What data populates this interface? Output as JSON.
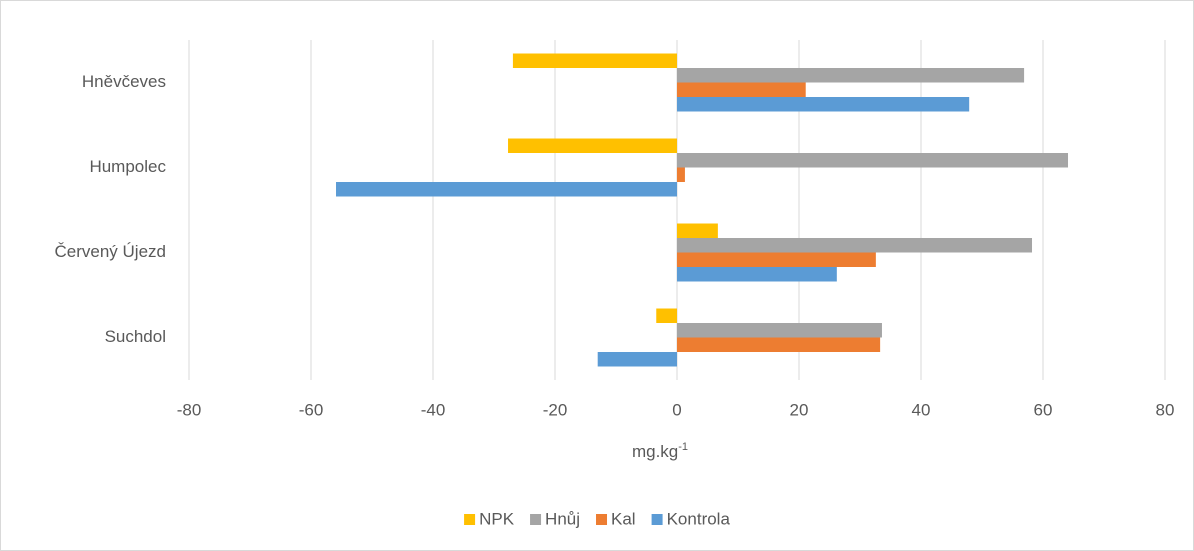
{
  "chart_data": {
    "type": "hbar",
    "categories": [
      "Suchdol",
      "Červený Újezd",
      "Humpolec",
      "Hněvčeves"
    ],
    "series": [
      {
        "name": "NPK",
        "color": "#ffc000",
        "values": [
          -3.4,
          6.7,
          -27.7,
          -26.9
        ]
      },
      {
        "name": "Hnůj",
        "color": "#a5a5a5",
        "values": [
          33.6,
          58.2,
          64.1,
          56.9
        ]
      },
      {
        "name": "Kal",
        "color": "#ed7d31",
        "values": [
          33.3,
          32.6,
          1.3,
          21.1
        ]
      },
      {
        "name": "Kontrola",
        "color": "#5b9bd5",
        "values": [
          -13,
          26.2,
          -55.9,
          47.9
        ]
      }
    ],
    "xlabel": "mg.kg",
    "xlabel_superscript": "-1",
    "xlim": [
      -80,
      80
    ],
    "xticks": [
      -80,
      -60,
      -40,
      -20,
      0,
      20,
      40,
      60,
      80
    ],
    "grid": true,
    "legend": "bottom"
  }
}
